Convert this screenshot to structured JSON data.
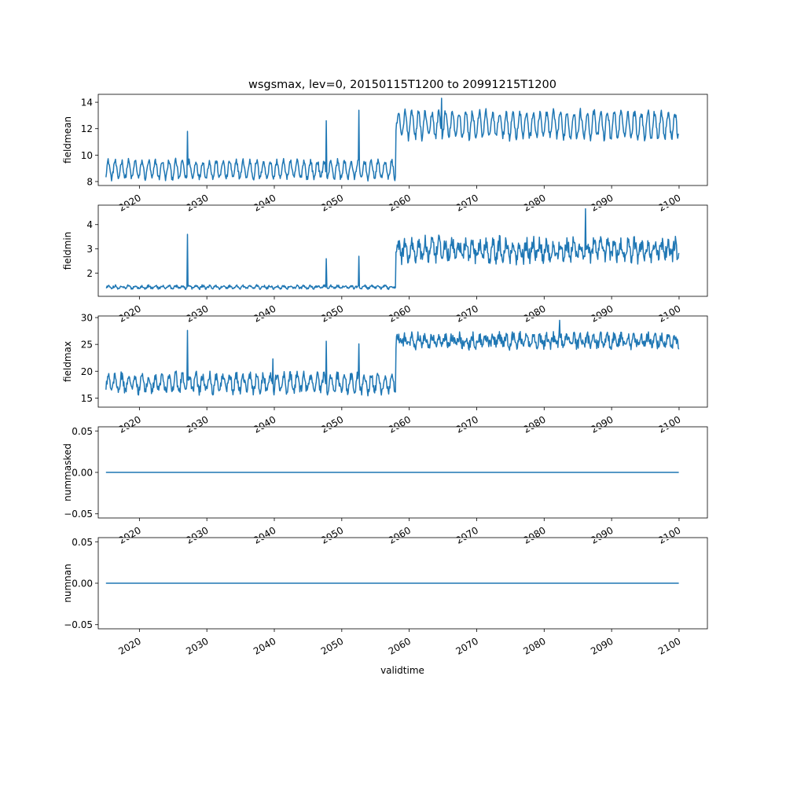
{
  "chart_data": {
    "type": "line",
    "title": "wsgsmax, lev=0, 20150115T1200 to 20991215T1200",
    "xlabel": "validtime",
    "x_range": [
      "2015-01-15",
      "2099-12-15"
    ],
    "xlim": [
      2013.9,
      2104.2
    ],
    "x_ticks": [
      "2020",
      "2030",
      "2040",
      "2050",
      "2060",
      "2070",
      "2080",
      "2090",
      "2100"
    ],
    "shared_x": true,
    "series_color": "#1f77b4",
    "grid": false,
    "subplots": [
      {
        "ylabel": "fieldmean",
        "ylim": [
          7.7,
          14.6
        ],
        "y_ticks": [
          "8",
          "10",
          "12",
          "14"
        ],
        "regimes": [
          {
            "start": 2015.04,
            "end": 2058.0,
            "base": 8.9,
            "amplitude": 0.65,
            "noise": 0.22,
            "min": 7.9,
            "max": 10.3
          },
          {
            "start": 2058.0,
            "end": 2099.96,
            "base": 12.3,
            "amplitude": 0.95,
            "noise": 0.3,
            "min": 10.9,
            "max": 14.3
          }
        ],
        "spikes": [
          {
            "x": 2027.1,
            "y": 11.8
          },
          {
            "x": 2047.7,
            "y": 12.6
          },
          {
            "x": 2052.5,
            "y": 13.4
          },
          {
            "x": 2064.8,
            "y": 14.3
          }
        ]
      },
      {
        "ylabel": "fieldmin",
        "ylim": [
          1.05,
          4.8
        ],
        "y_ticks": [
          "2",
          "3",
          "4"
        ],
        "regimes": [
          {
            "start": 2015.04,
            "end": 2058.0,
            "base": 1.43,
            "amplitude": 0.05,
            "noise": 0.05,
            "min": 1.28,
            "max": 1.62
          },
          {
            "start": 2058.0,
            "end": 2099.96,
            "base": 2.95,
            "amplitude": 0.3,
            "noise": 0.32,
            "min": 1.9,
            "max": 4.2
          }
        ],
        "spikes": [
          {
            "x": 2027.1,
            "y": 3.6
          },
          {
            "x": 2047.7,
            "y": 2.6
          },
          {
            "x": 2052.5,
            "y": 2.7
          },
          {
            "x": 2086.1,
            "y": 4.65
          }
        ]
      },
      {
        "ylabel": "fieldmax",
        "ylim": [
          13.3,
          30.3
        ],
        "y_ticks": [
          "15",
          "20",
          "25",
          "30"
        ],
        "regimes": [
          {
            "start": 2015.04,
            "end": 2058.0,
            "base": 17.8,
            "amplitude": 1.5,
            "noise": 0.9,
            "min": 14.0,
            "max": 22.4
          },
          {
            "start": 2058.0,
            "end": 2099.96,
            "base": 25.7,
            "amplitude": 0.8,
            "noise": 1.0,
            "min": 20.5,
            "max": 29.5
          }
        ],
        "spikes": [
          {
            "x": 2027.1,
            "y": 27.6
          },
          {
            "x": 2047.7,
            "y": 25.6
          },
          {
            "x": 2052.5,
            "y": 25.1
          },
          {
            "x": 2039.8,
            "y": 22.3
          },
          {
            "x": 2082.3,
            "y": 29.5
          }
        ]
      },
      {
        "ylabel": "nummasked",
        "ylim": [
          -0.055,
          0.055
        ],
        "y_ticks": [
          "−0.05",
          "0.00",
          "0.05"
        ],
        "constant": 0.0
      },
      {
        "ylabel": "numnan",
        "ylim": [
          -0.055,
          0.055
        ],
        "y_ticks": [
          "−0.05",
          "0.00",
          "0.05"
        ],
        "constant": 0.0
      }
    ]
  }
}
